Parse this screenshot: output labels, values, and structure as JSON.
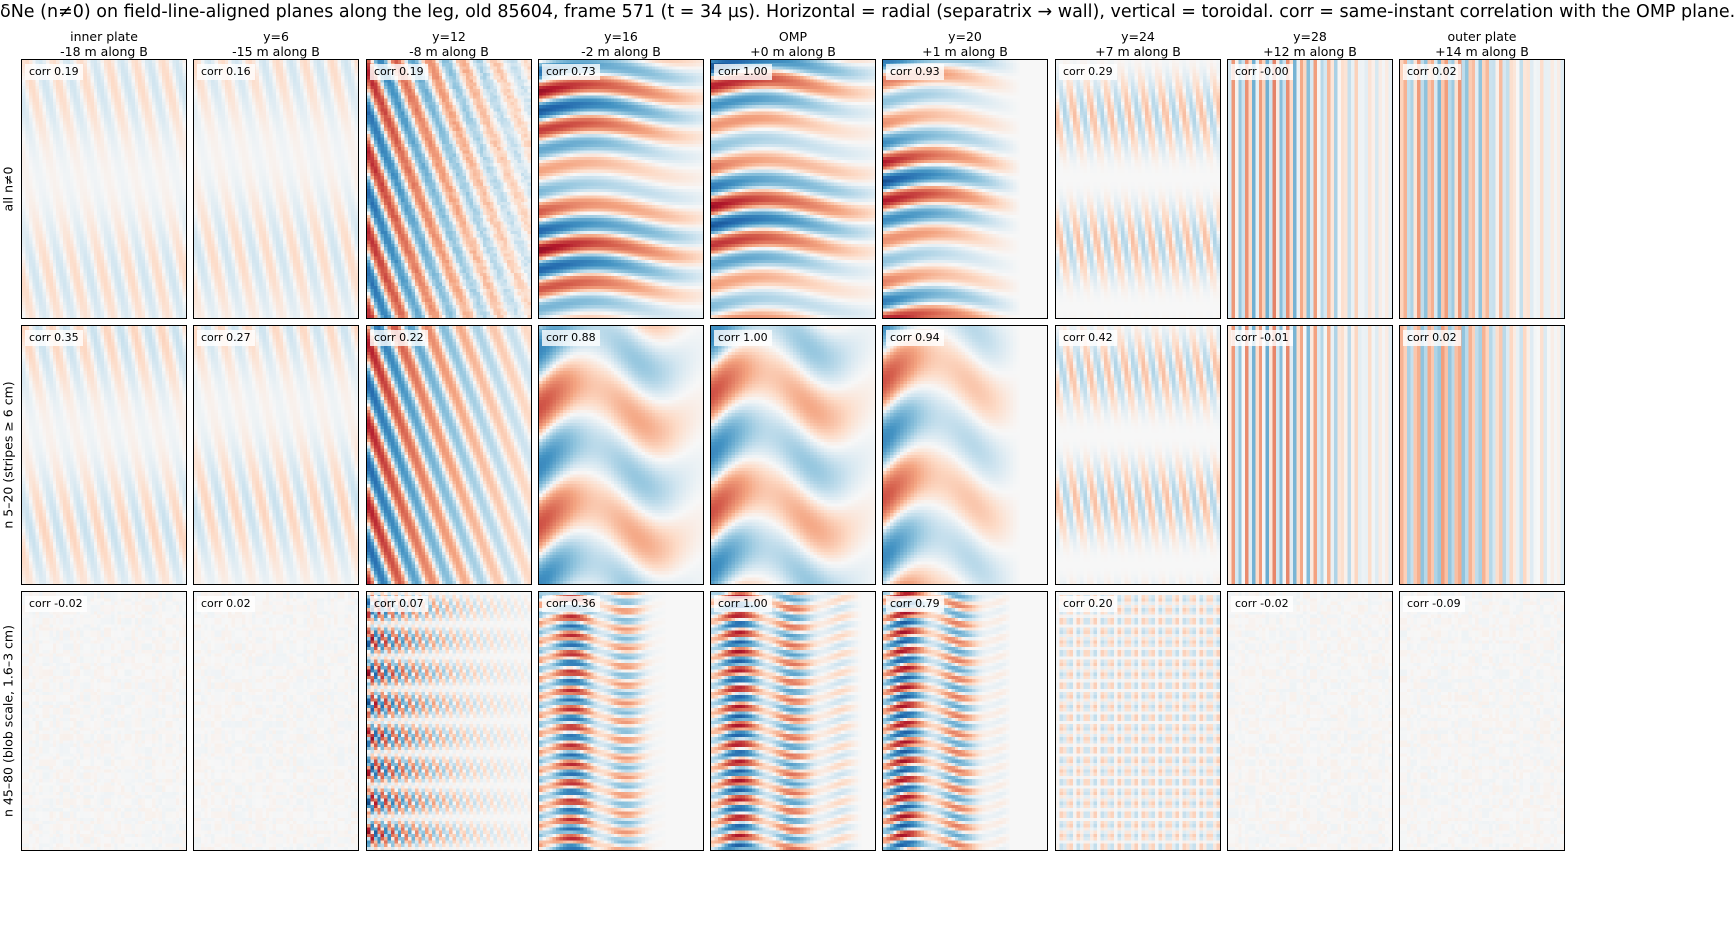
{
  "title": "δNe (n≠0) on field-line-aligned planes along the leg, old 85604, frame 571 (t = 34 µs). Horizontal = radial (separatrix → wall), vertical = toroidal. corr = same-instant correlation with the OMP plane.",
  "columns": [
    {
      "name": "inner plate",
      "position": "-18 m along B"
    },
    {
      "name": "y=6",
      "position": "-15 m along B"
    },
    {
      "name": "y=12",
      "position": "-8 m along B"
    },
    {
      "name": "y=16",
      "position": "-2 m along B"
    },
    {
      "name": "OMP",
      "position": "+0 m along B"
    },
    {
      "name": "y=20",
      "position": "+1 m along B"
    },
    {
      "name": "y=24",
      "position": "+7 m along B"
    },
    {
      "name": "y=28",
      "position": "+12 m along B"
    },
    {
      "name": "outer plate",
      "position": "+14 m along B"
    }
  ],
  "rows": [
    {
      "label": "all n≠0"
    },
    {
      "label": "n 5–20 (stripes ≥ 6 cm)"
    },
    {
      "label": "n 45–80 (blob scale, 1.6–3 cm)"
    }
  ],
  "chart_data": {
    "type": "heatmap",
    "colormap": "RdBu_r",
    "xlabel": "",
    "ylabel": "",
    "corr_prefix": "corr",
    "corr": [
      [
        "0.19",
        "0.16",
        "0.19",
        "0.73",
        "1.00",
        "0.93",
        "0.29",
        "-0.00",
        "0.02"
      ],
      [
        "0.35",
        "0.27",
        "0.22",
        "0.88",
        "1.00",
        "0.94",
        "0.42",
        "-0.01",
        "0.02"
      ],
      [
        "-0.02",
        "0.02",
        "0.07",
        "0.36",
        "1.00",
        "0.79",
        "0.20",
        "-0.02",
        "-0.09"
      ]
    ]
  }
}
